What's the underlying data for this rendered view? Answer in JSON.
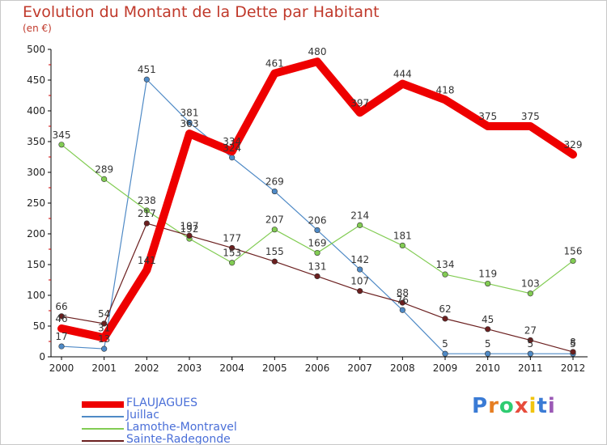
{
  "title": "Evolution du Montant de la Dette par Habitant",
  "subtitle": "(en €)",
  "brand": "Proxiti",
  "chart_data": {
    "type": "line",
    "x": [
      "2000",
      "2001",
      "2002",
      "2003",
      "2004",
      "2005",
      "2006",
      "2007",
      "2008",
      "2009",
      "2010",
      "2011",
      "2012"
    ],
    "ylim": [
      0,
      500
    ],
    "yticks": [
      0,
      50,
      100,
      150,
      200,
      250,
      300,
      350,
      400,
      450,
      500
    ],
    "grid": false,
    "legend_position": "bottom-left",
    "series": [
      {
        "name": "FLAUJAGUES",
        "color": "#ee0000",
        "values": [
          46,
          31,
          141,
          363,
          334,
          461,
          480,
          397,
          444,
          418,
          375,
          375,
          329
        ],
        "labels": [
          "46",
          "31",
          "141",
          "363",
          "334",
          "461",
          "480",
          "397",
          "444",
          "418",
          "375",
          "375",
          "329"
        ]
      },
      {
        "name": "Juillac",
        "color": "#4f8ac6",
        "values": [
          17,
          13,
          451,
          381,
          324,
          269,
          206,
          142,
          76,
          5,
          5,
          5,
          5
        ],
        "labels": [
          "17",
          "13",
          "451",
          "381",
          "324",
          "269",
          "206",
          "142",
          "76",
          "5",
          "5",
          "5",
          "5"
        ]
      },
      {
        "name": "Lamothe-Montravel",
        "color": "#82cc53",
        "values": [
          345,
          289,
          238,
          192,
          153,
          207,
          169,
          214,
          181,
          134,
          119,
          103,
          156
        ],
        "labels": [
          "345",
          "289",
          "238",
          "192",
          "153",
          "207",
          "169",
          "214",
          "181",
          "134",
          "119",
          "103",
          "156"
        ]
      },
      {
        "name": "Sainte-Radegonde",
        "color": "#6b1f1f",
        "values": [
          66,
          54,
          217,
          197,
          177,
          155,
          131,
          107,
          88,
          62,
          45,
          27,
          8
        ],
        "labels": [
          "66",
          "54",
          "217",
          "197",
          "177",
          "155",
          "131",
          "107",
          "88",
          "62",
          "45",
          "27",
          "8"
        ]
      }
    ]
  }
}
